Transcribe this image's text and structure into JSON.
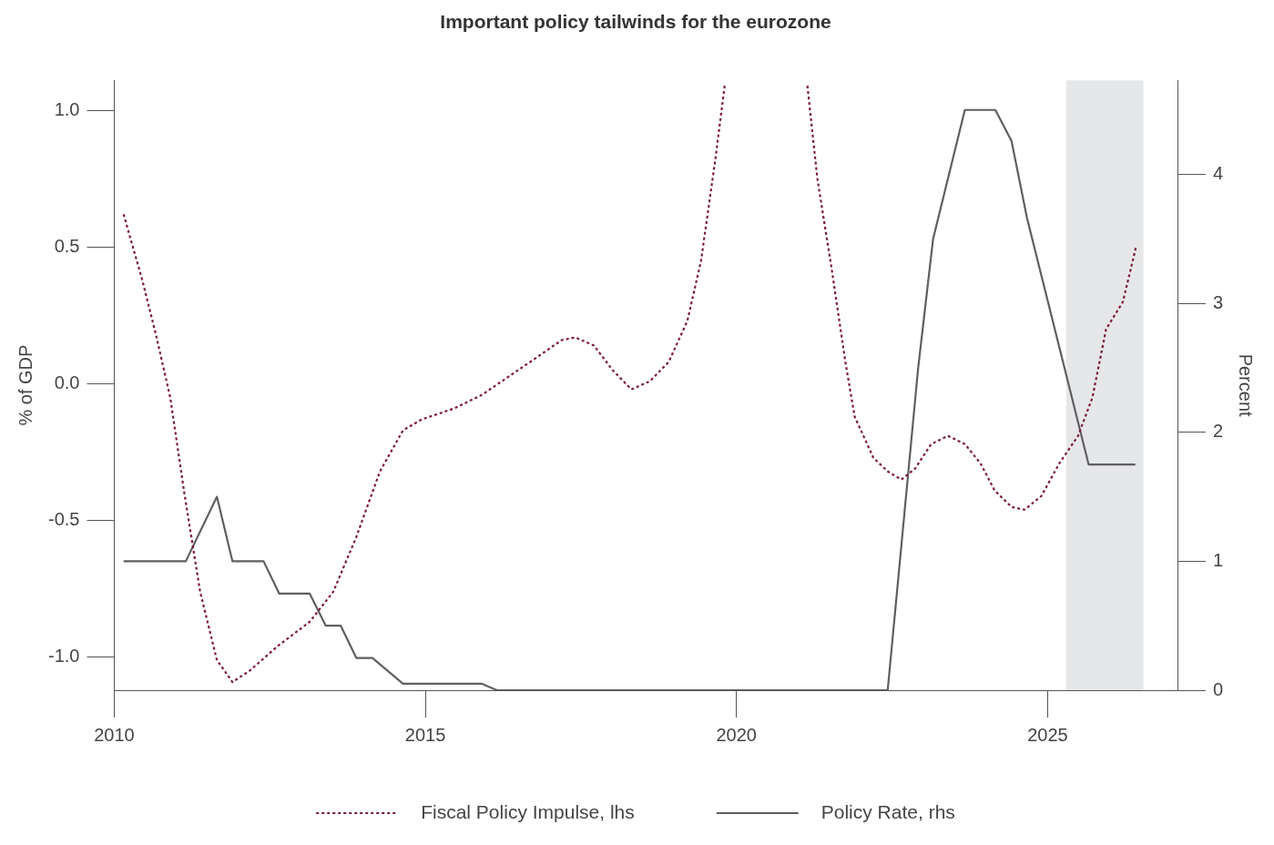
{
  "chart_data": {
    "type": "line",
    "title": "Important policy tailwinds for the eurozone",
    "ylabel": "% of GDP",
    "y2label": "Percent",
    "xlim": [
      2010,
      2027.1
    ],
    "xticks": [
      2010,
      2015,
      2020,
      2025
    ],
    "ylim": [
      -1.12,
      1.11
    ],
    "yticks": [
      {
        "value": -1,
        "label": "-1.0"
      },
      {
        "value": -0.5,
        "label": "-0.5"
      },
      {
        "value": 0,
        "label": "0.0"
      },
      {
        "value": 0.5,
        "label": "0.5"
      },
      {
        "value": 1,
        "label": "1.0"
      }
    ],
    "y2lim": [
      0,
      4.73
    ],
    "y2ticks": [
      0,
      1,
      2,
      3,
      4
    ],
    "grid": false,
    "legend": "bottom",
    "marker": "none",
    "bands": [
      {
        "axis": "x",
        "from": 2025.3,
        "to": 2026.54,
        "color": "#e6e7e8"
      }
    ],
    "series": [
      {
        "name": "Fiscal Policy Impulse, lhs",
        "color": "#7b1a3c",
        "line_style": "dotted",
        "x": [
          2010.15,
          2010.45,
          2010.67,
          2010.9,
          2011.12,
          2011.38,
          2011.65,
          2011.9,
          2012.17,
          2012.62,
          2013.14,
          2013.52,
          2013.89,
          2014.27,
          2014.64,
          2014.94,
          2015.46,
          2015.91,
          2016.36,
          2016.81,
          2017.19,
          2017.41,
          2017.71,
          2018.01,
          2018.31,
          2018.61,
          2018.91,
          2019.21,
          2019.43,
          2019.66,
          2019.81,
          2020.5,
          2021.14,
          2021.3,
          2021.53,
          2021.75,
          2021.9,
          2022.2,
          2022.43,
          2022.65,
          2022.87,
          2023.13,
          2023.4,
          2023.67,
          2023.92,
          2024.15,
          2024.42,
          2024.63,
          2024.9,
          2025.19,
          2025.49,
          2025.72,
          2025.94,
          2026.21,
          2026.42
        ],
        "values": [
          0.62,
          0.38,
          0.18,
          -0.05,
          -0.39,
          -0.76,
          -1.01,
          -1.09,
          -1.05,
          -0.96,
          -0.87,
          -0.76,
          -0.56,
          -0.32,
          -0.17,
          -0.13,
          -0.09,
          -0.04,
          0.03,
          0.1,
          0.16,
          0.17,
          0.14,
          0.05,
          -0.02,
          0.01,
          0.08,
          0.23,
          0.45,
          0.82,
          1.09,
          null,
          1.09,
          0.75,
          0.42,
          0.08,
          -0.12,
          -0.27,
          -0.32,
          -0.35,
          -0.31,
          -0.22,
          -0.19,
          -0.22,
          -0.29,
          -0.39,
          -0.45,
          -0.46,
          -0.41,
          -0.29,
          -0.19,
          -0.05,
          0.2,
          0.3,
          0.5
        ]
      },
      {
        "name": "Policy Rate, rhs",
        "color": "#5f5f61",
        "line_style": "solid",
        "axis": "y2",
        "x": [
          2010.15,
          2011.15,
          2011.65,
          2011.9,
          2012.4,
          2012.65,
          2013.14,
          2013.4,
          2013.64,
          2013.89,
          2014.15,
          2014.64,
          2015.91,
          2016.15,
          2022.43,
          2022.92,
          2023.16,
          2023.67,
          2024.16,
          2024.42,
          2024.67,
          2025.66,
          2026.41
        ],
        "values": [
          1,
          1,
          1.5,
          1,
          1,
          0.75,
          0.75,
          0.5,
          0.5,
          0.25,
          0.25,
          0.05,
          0.05,
          0,
          0,
          2.5,
          3.5,
          4.5,
          4.5,
          4.26,
          3.66,
          1.75,
          1.75
        ]
      }
    ]
  }
}
